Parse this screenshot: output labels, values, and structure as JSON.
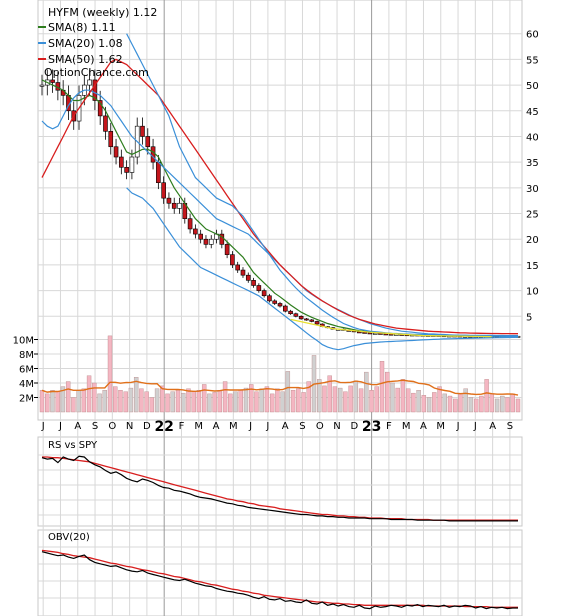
{
  "chart_data": {
    "type": "line",
    "title": "HYFM (weekly) 1.12",
    "watermark": "OptionChance.com",
    "legend": [
      {
        "label": "SMA(8) 1.11",
        "color": "#2e7d1e"
      },
      {
        "label": "SMA(20) 1.08",
        "color": "#3a8fd8"
      },
      {
        "label": "SMA(50) 1.62",
        "color": "#d81e1e"
      }
    ],
    "price_axis": {
      "ticks": [
        5,
        10,
        15,
        20,
        25,
        30,
        35,
        40,
        45,
        50,
        55,
        60
      ],
      "ylim": [
        0,
        65
      ],
      "position": "right"
    },
    "volume_axis": {
      "ticks": [
        "2M",
        "4M",
        "6M",
        "8M",
        "10M"
      ],
      "tick_values": [
        2,
        4,
        6,
        8,
        10
      ],
      "ylim": [
        0,
        12
      ]
    },
    "x_labels": [
      "J",
      "J",
      "A",
      "S",
      "O",
      "N",
      "D",
      "22",
      "F",
      "M",
      "A",
      "M",
      "J",
      "J",
      "A",
      "S",
      "O",
      "N",
      "D",
      "23",
      "F",
      "M",
      "A",
      "M",
      "J",
      "J",
      "A",
      "S"
    ],
    "bold_labels": [
      "22",
      "23"
    ],
    "price_close": [
      50,
      51,
      50.5,
      49,
      48,
      45,
      43,
      48,
      50,
      51,
      47,
      44,
      41,
      38,
      36,
      34,
      33,
      36,
      42,
      40,
      38,
      35,
      31,
      28,
      27,
      26,
      27,
      24,
      22,
      21,
      20,
      19,
      20,
      21,
      19,
      17,
      15,
      14,
      13,
      12,
      11,
      10,
      9,
      8,
      7.5,
      7,
      6,
      5.5,
      5,
      4.5,
      4.3,
      4,
      3.5,
      3,
      2.8,
      2.5,
      2.5,
      2.3,
      2.2,
      2,
      1.9,
      1.8,
      1.7,
      1.7,
      1.6,
      1.55,
      1.5,
      1.5,
      1.45,
      1.4,
      1.4,
      1.35,
      1.3,
      1.3,
      1.3,
      1.25,
      1.2,
      1.2,
      1.2,
      1.15,
      1.15,
      1.1,
      1.12,
      1.1,
      1.1,
      1.12,
      1.1,
      1.12,
      1.12,
      1.12,
      1.12
    ],
    "series": [
      {
        "name": "SMA(8) 1.11",
        "color": "#2e7d1e",
        "values": [
          51,
          50.5,
          50,
          49.5,
          49,
          48,
          47,
          47,
          47.5,
          48,
          47.5,
          46.5,
          45,
          43,
          41,
          39,
          37,
          36.5,
          37,
          37.5,
          37.5,
          37,
          36,
          34,
          32,
          30,
          28.5,
          27,
          25.5,
          24,
          23,
          22,
          21.5,
          21,
          20.5,
          19.5,
          18.5,
          17.5,
          16.5,
          15,
          13.5,
          12.5,
          11.5,
          10.5,
          9.5,
          8.8,
          8,
          7.2,
          6.5,
          5.8,
          5.3,
          4.8,
          4.4,
          4,
          3.6,
          3.3,
          3,
          2.8,
          2.6,
          2.4,
          2.2,
          2.1,
          2,
          1.9,
          1.8,
          1.7,
          1.65,
          1.6,
          1.55,
          1.5,
          1.45,
          1.42,
          1.38,
          1.35,
          1.32,
          1.3,
          1.27,
          1.24,
          1.22,
          1.2,
          1.18,
          1.16,
          1.14,
          1.13,
          1.12,
          1.12,
          1.12,
          1.11,
          1.11,
          1.11,
          1.11
        ]
      },
      {
        "name": "SMA(20) 1.08",
        "color": "#3a8fd8",
        "values": [
          43,
          42,
          41.5,
          42,
          44,
          46,
          47.5,
          48.5,
          49,
          49,
          48.5,
          48,
          47,
          46,
          44.5,
          43,
          41.5,
          40,
          39,
          38,
          37,
          36,
          35,
          34,
          33,
          32,
          31,
          30,
          29,
          28,
          27,
          26,
          25,
          24,
          23.5,
          23,
          22.5,
          22,
          21.5,
          21,
          20,
          19,
          18,
          17,
          16,
          15,
          14,
          13,
          12,
          11,
          10,
          9.3,
          8.6,
          8,
          7.4,
          6.8,
          6.3,
          5.8,
          5.3,
          4.8,
          4.4,
          4,
          3.6,
          3.3,
          3,
          2.7,
          2.5,
          2.3,
          2.1,
          2,
          1.9,
          1.8,
          1.7,
          1.6,
          1.55,
          1.5,
          1.45,
          1.4,
          1.35,
          1.3,
          1.28,
          1.25,
          1.22,
          1.2,
          1.18,
          1.15,
          1.12,
          1.1,
          1.09,
          1.08,
          1.08
        ]
      },
      {
        "name": "SMA(50) 1.62",
        "color": "#d81e1e",
        "values": [
          32,
          34,
          36,
          38,
          40,
          42,
          44,
          45.5,
          47,
          48.5,
          50,
          51.5,
          53,
          54.5,
          55,
          54.5,
          54,
          53,
          52,
          51,
          50,
          49,
          48,
          46.5,
          45,
          43.5,
          42,
          40.5,
          39,
          37.5,
          36,
          34.5,
          33,
          31.5,
          30,
          28.5,
          27,
          25.5,
          24,
          22.5,
          21,
          19.8,
          18.6,
          17.4,
          16.2,
          15,
          14,
          13,
          12,
          11,
          10.2,
          9.4,
          8.7,
          8,
          7.4,
          6.8,
          6.2,
          5.7,
          5.2,
          4.8,
          4.4,
          4.1,
          3.8,
          3.5,
          3.3,
          3.1,
          2.9,
          2.7,
          2.6,
          2.5,
          2.4,
          2.3,
          2.2,
          2.1,
          2.05,
          2,
          1.95,
          1.9,
          1.85,
          1.8,
          1.77,
          1.74,
          1.71,
          1.69,
          1.67,
          1.66,
          1.65,
          1.64,
          1.63,
          1.62,
          1.62
        ]
      },
      {
        "name": "upper-band",
        "color": "#3a8fd8",
        "values": [
          null,
          null,
          null,
          null,
          null,
          null,
          null,
          null,
          null,
          null,
          null,
          null,
          null,
          null,
          null,
          null,
          60,
          58,
          56,
          54,
          52,
          50,
          48,
          46,
          44,
          41,
          38,
          36,
          34,
          32,
          31,
          30,
          29,
          28,
          27.5,
          27,
          26.5,
          25.5,
          24.5,
          23,
          21.5,
          20,
          18.5,
          17,
          15.5,
          14,
          12.8,
          11.6,
          10.5,
          9.5,
          8.6,
          7.8,
          7,
          6.2,
          5.5,
          4.8,
          4.2,
          3.6,
          3.2,
          2.8,
          2.5,
          2.3,
          2.1,
          2,
          1.9,
          1.8,
          1.7,
          1.65,
          1.6,
          1.55,
          1.5,
          1.48,
          1.45,
          1.42,
          1.4,
          1.38,
          1.36,
          1.35,
          1.34,
          1.33,
          1.32,
          1.31,
          1.3,
          1.3,
          1.29,
          1.28,
          1.27,
          1.26,
          1.25,
          1.24,
          1.24
        ]
      },
      {
        "name": "lower-band",
        "color": "#3a8fd8",
        "values": [
          null,
          null,
          null,
          null,
          null,
          null,
          null,
          null,
          null,
          null,
          null,
          null,
          null,
          null,
          null,
          null,
          30,
          29,
          28.5,
          28,
          27,
          26,
          24.5,
          23,
          21.5,
          20,
          18.5,
          17.5,
          16.5,
          15.5,
          14.5,
          14,
          13.5,
          13,
          12.5,
          12,
          11.5,
          11,
          10.5,
          10,
          9.5,
          9,
          8.2,
          7.4,
          6.6,
          5.8,
          5,
          4.2,
          3.4,
          2.6,
          1.8,
          1,
          0.3,
          -0.5,
          -1,
          -1.3,
          -1.5,
          -1.3,
          -1,
          -0.7,
          -0.5,
          -0.3,
          -0.2,
          -0.1,
          0,
          0.05,
          0.1,
          0.15,
          0.2,
          0.25,
          0.3,
          0.35,
          0.4,
          0.45,
          0.5,
          0.55,
          0.6,
          0.62,
          0.65,
          0.68,
          0.7,
          0.72,
          0.75,
          0.78,
          0.8,
          0.82,
          0.84,
          0.86,
          0.88,
          0.9,
          0.92
        ]
      }
    ],
    "volume": [
      3,
      2.5,
      3,
      2.8,
      3.5,
      4.2,
      2,
      3,
      3.2,
      5,
      4,
      2.5,
      3,
      10.5,
      3.5,
      3,
      2.8,
      3.3,
      4.8,
      3.2,
      2.8,
      2,
      3.2,
      3.6,
      2.5,
      2.8,
      3,
      2.6,
      3.2,
      2.8,
      3,
      3.8,
      2.5,
      2.7,
      3,
      4.2,
      2.5,
      2.8,
      3,
      3.3,
      3.8,
      2.8,
      3.2,
      3.5,
      2.5,
      3.2,
      2.8,
      5.6,
      3,
      3.2,
      2.7,
      4.2,
      7.8,
      4.5,
      3.6,
      5,
      3.5,
      3.3,
      2.8,
      3.6,
      4.3,
      3.2,
      5.5,
      3,
      3.5,
      7,
      5.5,
      4,
      3.3,
      4.5,
      3.2,
      2.6,
      3,
      2.3,
      2,
      2.7,
      3.5,
      2.5,
      2.2,
      1.8,
      2.6,
      3.2,
      2,
      1.8,
      2.2,
      4.5,
      2.5,
      1.8,
      2.2,
      2,
      2.5,
      1.8
    ]
  },
  "rs_panel": {
    "label": "RS vs SPY",
    "values": [
      0.92,
      0.9,
      0.91,
      0.85,
      0.93,
      0.9,
      0.88,
      0.94,
      0.93,
      0.86,
      0.82,
      0.79,
      0.74,
      0.7,
      0.72,
      0.68,
      0.63,
      0.6,
      0.58,
      0.62,
      0.6,
      0.57,
      0.53,
      0.5,
      0.49,
      0.46,
      0.45,
      0.43,
      0.41,
      0.38,
      0.36,
      0.35,
      0.34,
      0.32,
      0.3,
      0.28,
      0.27,
      0.25,
      0.24,
      0.22,
      0.21,
      0.2,
      0.19,
      0.18,
      0.17,
      0.16,
      0.15,
      0.14,
      0.13,
      0.12,
      0.12,
      0.11,
      0.1,
      0.1,
      0.09,
      0.09,
      0.08,
      0.08,
      0.07,
      0.07,
      0.07,
      0.07,
      0.06,
      0.06,
      0.06,
      0.06,
      0.05,
      0.05,
      0.05,
      0.05,
      0.05,
      0.04,
      0.04,
      0.04,
      0.04,
      0.04,
      0.04,
      0.03,
      0.03,
      0.03,
      0.03,
      0.03,
      0.03,
      0.03,
      0.03,
      0.03,
      0.03,
      0.03,
      0.03,
      0.03,
      0.03
    ],
    "ma": [
      0.93,
      0.93,
      0.92,
      0.92,
      0.91,
      0.9,
      0.89,
      0.88,
      0.87,
      0.86,
      0.84,
      0.82,
      0.8,
      0.78,
      0.76,
      0.74,
      0.72,
      0.7,
      0.68,
      0.66,
      0.64,
      0.62,
      0.6,
      0.58,
      0.56,
      0.54,
      0.52,
      0.5,
      0.48,
      0.46,
      0.44,
      0.42,
      0.4,
      0.38,
      0.36,
      0.34,
      0.33,
      0.31,
      0.3,
      0.28,
      0.27,
      0.25,
      0.24,
      0.23,
      0.22,
      0.2,
      0.19,
      0.18,
      0.17,
      0.16,
      0.15,
      0.14,
      0.13,
      0.12,
      0.12,
      0.11,
      0.1,
      0.1,
      0.09,
      0.09,
      0.08,
      0.08,
      0.07,
      0.07,
      0.07,
      0.06,
      0.06,
      0.06,
      0.06,
      0.05,
      0.05,
      0.05,
      0.05,
      0.05,
      0.04,
      0.04,
      0.04,
      0.04,
      0.04,
      0.04,
      0.04,
      0.04,
      0.04,
      0.04,
      0.04,
      0.04,
      0.04,
      0.04,
      0.04,
      0.04,
      0.04
    ]
  },
  "obv_panel": {
    "label": "OBV(20)",
    "values": [
      0.9,
      0.88,
      0.86,
      0.84,
      0.85,
      0.82,
      0.8,
      0.83,
      0.85,
      0.78,
      0.74,
      0.72,
      0.7,
      0.68,
      0.69,
      0.66,
      0.63,
      0.61,
      0.6,
      0.62,
      0.58,
      0.56,
      0.54,
      0.52,
      0.5,
      0.48,
      0.47,
      0.49,
      0.46,
      0.43,
      0.41,
      0.39,
      0.38,
      0.35,
      0.33,
      0.31,
      0.3,
      0.28,
      0.27,
      0.25,
      0.22,
      0.2,
      0.23,
      0.19,
      0.18,
      0.2,
      0.16,
      0.17,
      0.15,
      0.14,
      0.18,
      0.13,
      0.12,
      0.15,
      0.1,
      0.12,
      0.09,
      0.11,
      0.08,
      0.07,
      0.1,
      0.06,
      0.05,
      0.09,
      0.07,
      0.08,
      0.1,
      0.09,
      0.07,
      0.1,
      0.09,
      0.11,
      0.08,
      0.1,
      0.09,
      0.08,
      0.1,
      0.07,
      0.09,
      0.08,
      0.1,
      0.09,
      0.06,
      0.08,
      0.05,
      0.07,
      0.06,
      0.07,
      0.05,
      0.06,
      0.06
    ],
    "ma": [
      0.92,
      0.91,
      0.9,
      0.89,
      0.87,
      0.86,
      0.84,
      0.83,
      0.82,
      0.81,
      0.79,
      0.77,
      0.75,
      0.73,
      0.72,
      0.7,
      0.68,
      0.67,
      0.65,
      0.63,
      0.62,
      0.6,
      0.58,
      0.57,
      0.55,
      0.53,
      0.52,
      0.5,
      0.48,
      0.46,
      0.45,
      0.43,
      0.41,
      0.4,
      0.38,
      0.36,
      0.34,
      0.33,
      0.31,
      0.3,
      0.28,
      0.27,
      0.25,
      0.24,
      0.23,
      0.22,
      0.21,
      0.2,
      0.19,
      0.18,
      0.17,
      0.16,
      0.15,
      0.15,
      0.14,
      0.13,
      0.13,
      0.12,
      0.12,
      0.11,
      0.11,
      0.1,
      0.1,
      0.1,
      0.1,
      0.1,
      0.1,
      0.1,
      0.1,
      0.1,
      0.1,
      0.1,
      0.1,
      0.09,
      0.09,
      0.09,
      0.09,
      0.09,
      0.09,
      0.09,
      0.08,
      0.08,
      0.08,
      0.08,
      0.08,
      0.07,
      0.07,
      0.07,
      0.07,
      0.07,
      0.07
    ]
  },
  "colors": {
    "up_candle": "#ffffff",
    "down_candle": "#c4161c",
    "volume_bar": "#f4b6c2",
    "volume_bar_alt": "#d0d0d0",
    "volume_ma": "#e0701a",
    "grid": "#d8d8d8",
    "sma_yellow": "#e8e030"
  }
}
